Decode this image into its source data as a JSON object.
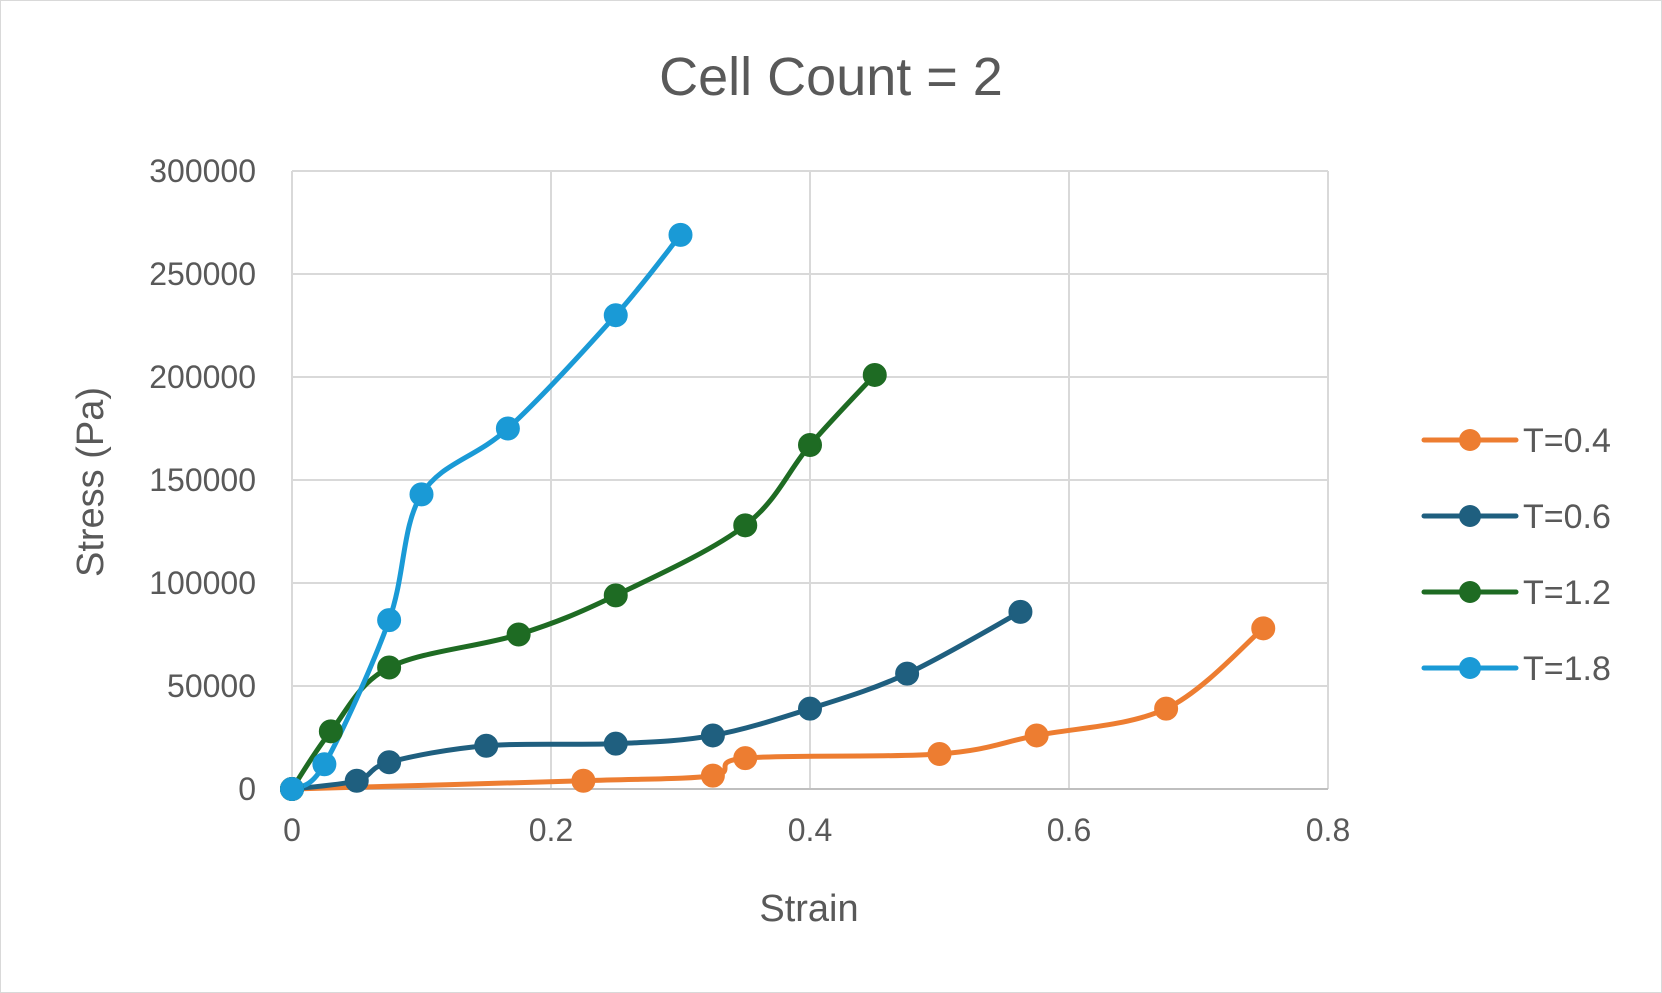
{
  "chart_data": {
    "type": "line",
    "title": "Cell Count = 2",
    "xlabel": "Strain",
    "ylabel": "Stress (Pa)",
    "xlim": [
      0,
      0.8
    ],
    "ylim": [
      0,
      300000
    ],
    "xticks": [
      "0",
      "0.2",
      "0.4",
      "0.6",
      "0.8"
    ],
    "yticks": [
      "0",
      "50000",
      "100000",
      "150000",
      "200000",
      "250000",
      "300000"
    ],
    "grid": true,
    "legend_position": "right",
    "smooth": true,
    "series": [
      {
        "name": "T=0.4",
        "color": "#ed7d31",
        "points": [
          [
            0,
            0
          ],
          [
            0.225,
            4000
          ],
          [
            0.325,
            6500
          ],
          [
            0.35,
            15000
          ],
          [
            0.5,
            17000
          ],
          [
            0.575,
            26000
          ],
          [
            0.675,
            39000
          ],
          [
            0.75,
            78000
          ]
        ]
      },
      {
        "name": "T=0.6",
        "color": "#1f5f7f",
        "points": [
          [
            0,
            0
          ],
          [
            0.05,
            4000
          ],
          [
            0.075,
            13000
          ],
          [
            0.15,
            21000
          ],
          [
            0.25,
            22000
          ],
          [
            0.325,
            26000
          ],
          [
            0.4,
            39000
          ],
          [
            0.475,
            56000
          ],
          [
            0.5625,
            86000
          ]
        ]
      },
      {
        "name": "T=1.2",
        "color": "#1e6b23",
        "points": [
          [
            0,
            0
          ],
          [
            0.03,
            28000
          ],
          [
            0.075,
            59000
          ],
          [
            0.175,
            75000
          ],
          [
            0.25,
            94000
          ],
          [
            0.35,
            128000
          ],
          [
            0.4,
            167000
          ],
          [
            0.45,
            201000
          ]
        ]
      },
      {
        "name": "T=1.8",
        "color": "#1a9ad6",
        "points": [
          [
            0,
            0
          ],
          [
            0.025,
            12000
          ],
          [
            0.075,
            82000
          ],
          [
            0.1,
            143000
          ],
          [
            0.1667,
            175000
          ],
          [
            0.25,
            230000
          ],
          [
            0.3,
            269000
          ]
        ]
      }
    ]
  }
}
